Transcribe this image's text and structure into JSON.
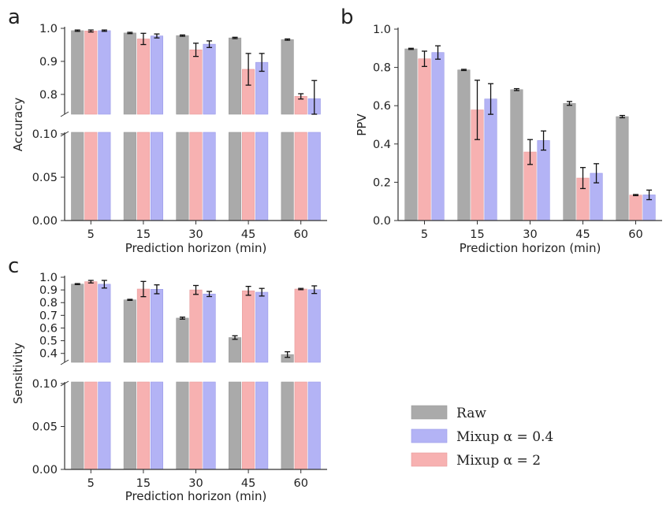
{
  "colors": {
    "Raw": "#aaaaaa",
    "Mixup α = 0.4": "#b3b3f5",
    "Mixup α = 2": "#f7b1b1",
    "edgeRaw": "#9a9a9a",
    "edgeBlue": "#9a9ae8",
    "edgePink": "#e89a9a",
    "err": "#111111",
    "axis": "#333333"
  },
  "legend": {
    "items": [
      "Raw",
      "Mixup α = 0.4",
      "Mixup α = 2"
    ]
  },
  "chart_data": [
    {
      "panel": "a",
      "type": "bar",
      "broken_axis": true,
      "categories": [
        "5",
        "15",
        "30",
        "45",
        "60"
      ],
      "xlabel": "Prediction horizon (min)",
      "ylabel": "Accuracy",
      "ylim_upper": [
        0.74,
        1.0
      ],
      "ylim_lower": [
        0.0,
        0.1
      ],
      "yticks_upper": [
        "0.8",
        "0.9",
        "1.0"
      ],
      "yticks_lower": [
        "0.00",
        "0.05",
        "0.10"
      ],
      "series": [
        {
          "name": "Raw",
          "values": [
            0.993,
            0.986,
            0.978,
            0.971,
            0.966
          ],
          "errors": [
            0.002,
            0.002,
            0.002,
            0.002,
            0.002
          ]
        },
        {
          "name": "Mixup α = 2",
          "values": [
            0.992,
            0.968,
            0.935,
            0.876,
            0.794
          ],
          "errors": [
            0.003,
            0.017,
            0.02,
            0.048,
            0.008
          ]
        },
        {
          "name": "Mixup α = 0.4",
          "values": [
            0.993,
            0.977,
            0.952,
            0.897,
            0.787
          ],
          "errors": [
            0.002,
            0.006,
            0.01,
            0.027,
            0.055
          ]
        }
      ]
    },
    {
      "panel": "b",
      "type": "bar",
      "broken_axis": false,
      "categories": [
        "5",
        "15",
        "30",
        "45",
        "60"
      ],
      "xlabel": "Prediction horizon (min)",
      "ylabel": "PPV",
      "ylim": [
        0.0,
        1.0
      ],
      "yticks": [
        "0.0",
        "0.2",
        "0.4",
        "0.6",
        "0.8",
        "1.0"
      ],
      "series": [
        {
          "name": "Raw",
          "values": [
            0.897,
            0.787,
            0.684,
            0.612,
            0.543
          ],
          "errors": [
            0.003,
            0.003,
            0.005,
            0.01,
            0.006
          ]
        },
        {
          "name": "Mixup α = 2",
          "values": [
            0.845,
            0.578,
            0.358,
            0.222,
            0.133
          ],
          "errors": [
            0.04,
            0.155,
            0.065,
            0.055,
            0.003
          ]
        },
        {
          "name": "Mixup α = 0.4",
          "values": [
            0.878,
            0.635,
            0.418,
            0.247,
            0.134
          ],
          "errors": [
            0.035,
            0.08,
            0.05,
            0.05,
            0.025
          ]
        }
      ]
    },
    {
      "panel": "c",
      "type": "bar",
      "broken_axis": true,
      "categories": [
        "5",
        "15",
        "30",
        "45",
        "60"
      ],
      "xlabel": "Prediction horizon (min)",
      "ylabel": "Sensitivity",
      "ylim_upper": [
        0.33,
        1.0
      ],
      "ylim_lower": [
        0.0,
        0.1
      ],
      "yticks_upper": [
        "0.4",
        "0.5",
        "0.6",
        "0.7",
        "0.8",
        "0.9",
        "1.0"
      ],
      "yticks_lower": [
        "0.00",
        "0.05",
        "0.10"
      ],
      "series": [
        {
          "name": "Raw",
          "values": [
            0.946,
            0.822,
            0.678,
            0.525,
            0.391
          ],
          "errors": [
            0.004,
            0.004,
            0.008,
            0.014,
            0.022
          ]
        },
        {
          "name": "Mixup α = 2",
          "values": [
            0.965,
            0.907,
            0.9,
            0.893,
            0.907
          ],
          "errors": [
            0.01,
            0.06,
            0.035,
            0.035,
            0.005
          ]
        },
        {
          "name": "Mixup α = 0.4",
          "values": [
            0.945,
            0.905,
            0.868,
            0.882,
            0.902
          ],
          "errors": [
            0.03,
            0.035,
            0.02,
            0.03,
            0.03
          ]
        }
      ]
    }
  ]
}
